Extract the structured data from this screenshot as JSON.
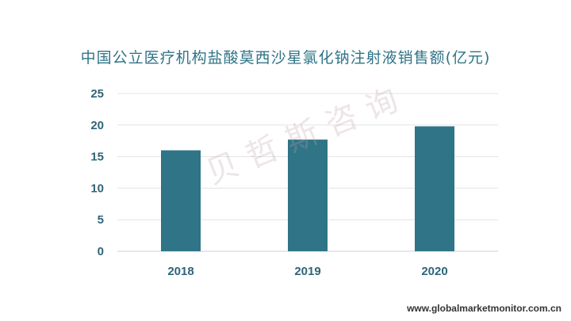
{
  "chart_data": {
    "type": "bar",
    "title": "中国公立医疗机构盐酸莫西沙星氯化钠注射液销售额(亿元)",
    "categories": [
      "2018",
      "2019",
      "2020"
    ],
    "values": [
      16.0,
      17.7,
      19.8
    ],
    "ylim": [
      0,
      25
    ],
    "yticks": [
      0,
      5,
      10,
      15,
      20,
      25
    ],
    "grid": true,
    "bar_color": "#2f7487",
    "grid_color": "#e3e3e3",
    "axis_label_color": "#2f6578"
  },
  "watermark": "贝哲斯咨询",
  "footer": {
    "url": "www.globalmarketmonitor.com.cn"
  }
}
